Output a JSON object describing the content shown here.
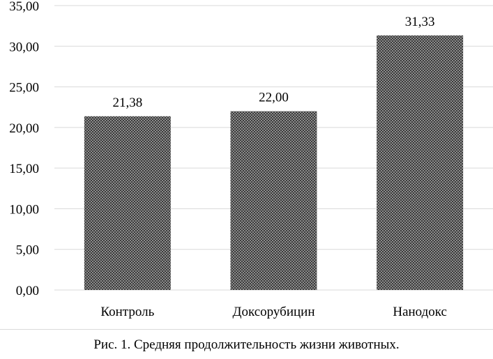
{
  "chart_data": {
    "type": "bar",
    "categories": [
      "Контроль",
      "Доксорубицин",
      "Нанодокс"
    ],
    "values": [
      21.38,
      22.0,
      31.33
    ],
    "data_labels": [
      "21,38",
      "22,00",
      "31,33"
    ],
    "y_tick_labels": [
      "0,00",
      "5,00",
      "10,00",
      "15,00",
      "20,00",
      "25,00",
      "30,00",
      "35,00"
    ],
    "y_ticks": [
      0,
      5,
      10,
      15,
      20,
      25,
      30,
      35
    ],
    "ylim": [
      0,
      35
    ],
    "grid": true,
    "bar_fill": "checkered",
    "colors": {
      "bar_dark": "#3a3a3a",
      "bar_light": "#8c8c8c",
      "grid": "#d9d9d9"
    }
  },
  "caption": "Рис. 1. Средняя продолжительность жизни животных."
}
